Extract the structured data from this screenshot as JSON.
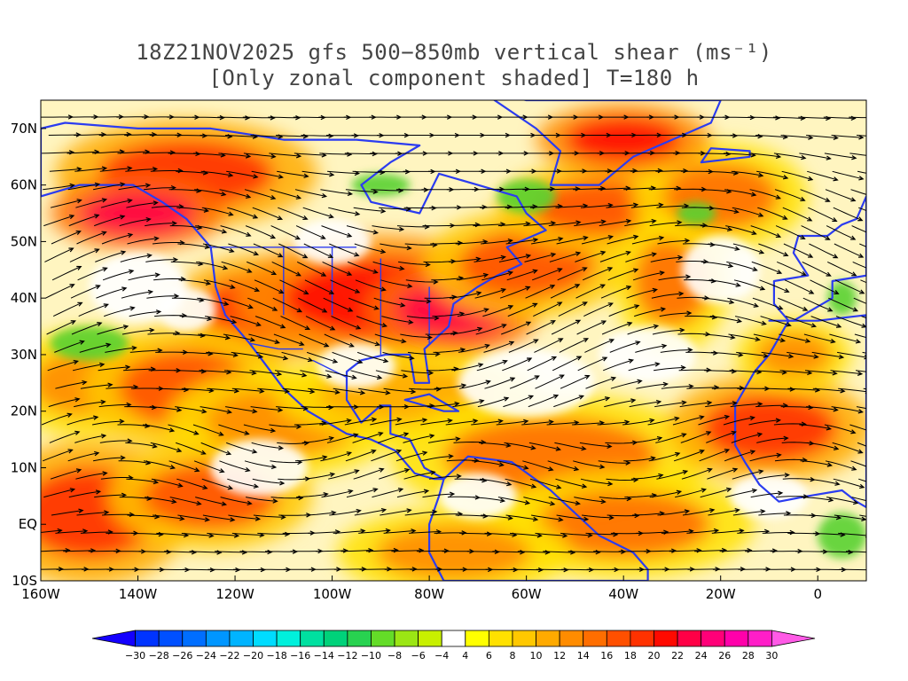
{
  "title": {
    "line1": "18Z21NOV2025 gfs 500−850mb vertical shear (ms⁻¹)",
    "line2": "[Only zonal component shaded] T=180 h"
  },
  "axes": {
    "lat_labels": [
      "70N",
      "60N",
      "50N",
      "40N",
      "30N",
      "20N",
      "10N",
      "EQ",
      "10S"
    ],
    "lon_labels": [
      "160W",
      "140W",
      "120W",
      "100W",
      "80W",
      "60W",
      "40W",
      "20W",
      "0"
    ]
  },
  "colorbar": {
    "labels": [
      "-30",
      "-28",
      "-26",
      "-24",
      "-22",
      "-20",
      "-18",
      "-16",
      "-14",
      "-12",
      "-10",
      "-8",
      "-6",
      "-4",
      "4",
      "6",
      "8",
      "10",
      "12",
      "14",
      "16",
      "18",
      "20",
      "22",
      "24",
      "26",
      "28",
      "30"
    ],
    "colors": [
      "#1400ff",
      "#0034ff",
      "#0050ff",
      "#006eff",
      "#0096ff",
      "#00b4ff",
      "#00dcff",
      "#00f0dc",
      "#00e0a0",
      "#00d27a",
      "#28d250",
      "#64dc28",
      "#9be614",
      "#c8f000",
      "#ffffff",
      "#ffff00",
      "#ffe100",
      "#ffc800",
      "#ffaa00",
      "#ff8c00",
      "#ff6e00",
      "#ff5000",
      "#ff3200",
      "#ff0a00",
      "#ff0046",
      "#ff0078",
      "#ff00aa",
      "#ff1ec8",
      "#ff5ae6"
    ]
  },
  "map": {
    "lon_range": [
      -160,
      10
    ],
    "lat_range": [
      -10,
      75
    ],
    "coastline_color": "#2b3cf0",
    "streamline_color": "#000000",
    "land_features": [
      "North America",
      "South America",
      "Greenland",
      "Europe",
      "Africa"
    ],
    "shading_blobs": [
      {
        "lon": -130,
        "lat": 62,
        "rx": 18,
        "ry": 6,
        "val": 20
      },
      {
        "lon": -140,
        "lat": 55,
        "rx": 12,
        "ry": 4,
        "val": 24
      },
      {
        "lon": -115,
        "lat": 38,
        "rx": 12,
        "ry": 6,
        "val": 20
      },
      {
        "lon": -90,
        "lat": 40,
        "rx": 20,
        "ry": 7,
        "val": 22
      },
      {
        "lon": -75,
        "lat": 38,
        "rx": 12,
        "ry": 5,
        "val": 24
      },
      {
        "lon": -60,
        "lat": 46,
        "rx": 14,
        "ry": 6,
        "val": 18
      },
      {
        "lon": -45,
        "lat": 56,
        "rx": 14,
        "ry": 5,
        "val": 18
      },
      {
        "lon": -30,
        "lat": 43,
        "rx": 8,
        "ry": 8,
        "val": 16
      },
      {
        "lon": -20,
        "lat": 58,
        "rx": 12,
        "ry": 6,
        "val": 16
      },
      {
        "lon": -40,
        "lat": 68,
        "rx": 12,
        "ry": 4,
        "val": 22
      },
      {
        "lon": -150,
        "lat": 25,
        "rx": 12,
        "ry": 6,
        "val": 14
      },
      {
        "lon": -130,
        "lat": 24,
        "rx": 14,
        "ry": 7,
        "val": 18
      },
      {
        "lon": -110,
        "lat": 18,
        "rx": 16,
        "ry": 6,
        "val": 14
      },
      {
        "lon": -85,
        "lat": 23,
        "rx": 18,
        "ry": 5,
        "val": 12
      },
      {
        "lon": -55,
        "lat": 12,
        "rx": 22,
        "ry": 7,
        "val": 16
      },
      {
        "lon": -10,
        "lat": 17,
        "rx": 14,
        "ry": 6,
        "val": 20
      },
      {
        "lon": -150,
        "lat": 2,
        "rx": 14,
        "ry": 8,
        "val": 20
      },
      {
        "lon": -125,
        "lat": 5,
        "rx": 14,
        "ry": 6,
        "val": 18
      },
      {
        "lon": -40,
        "lat": 0,
        "rx": 18,
        "ry": 6,
        "val": 16
      },
      {
        "lon": -75,
        "lat": -5,
        "rx": 16,
        "ry": 5,
        "val": 14
      },
      {
        "lon": -5,
        "lat": 30,
        "rx": 8,
        "ry": 4,
        "val": 14
      }
    ],
    "green_patches": [
      {
        "lon": -150,
        "lat": 32,
        "rx": 8,
        "ry": 3
      },
      {
        "lon": -60,
        "lat": 58,
        "rx": 6,
        "ry": 3
      },
      {
        "lon": -90,
        "lat": 60,
        "rx": 6,
        "ry": 2
      },
      {
        "lon": -25,
        "lat": 55,
        "rx": 4,
        "ry": 2
      },
      {
        "lon": 5,
        "lat": -2,
        "rx": 5,
        "ry": 4
      },
      {
        "lon": 5,
        "lat": 40,
        "rx": 3,
        "ry": 3
      }
    ]
  }
}
